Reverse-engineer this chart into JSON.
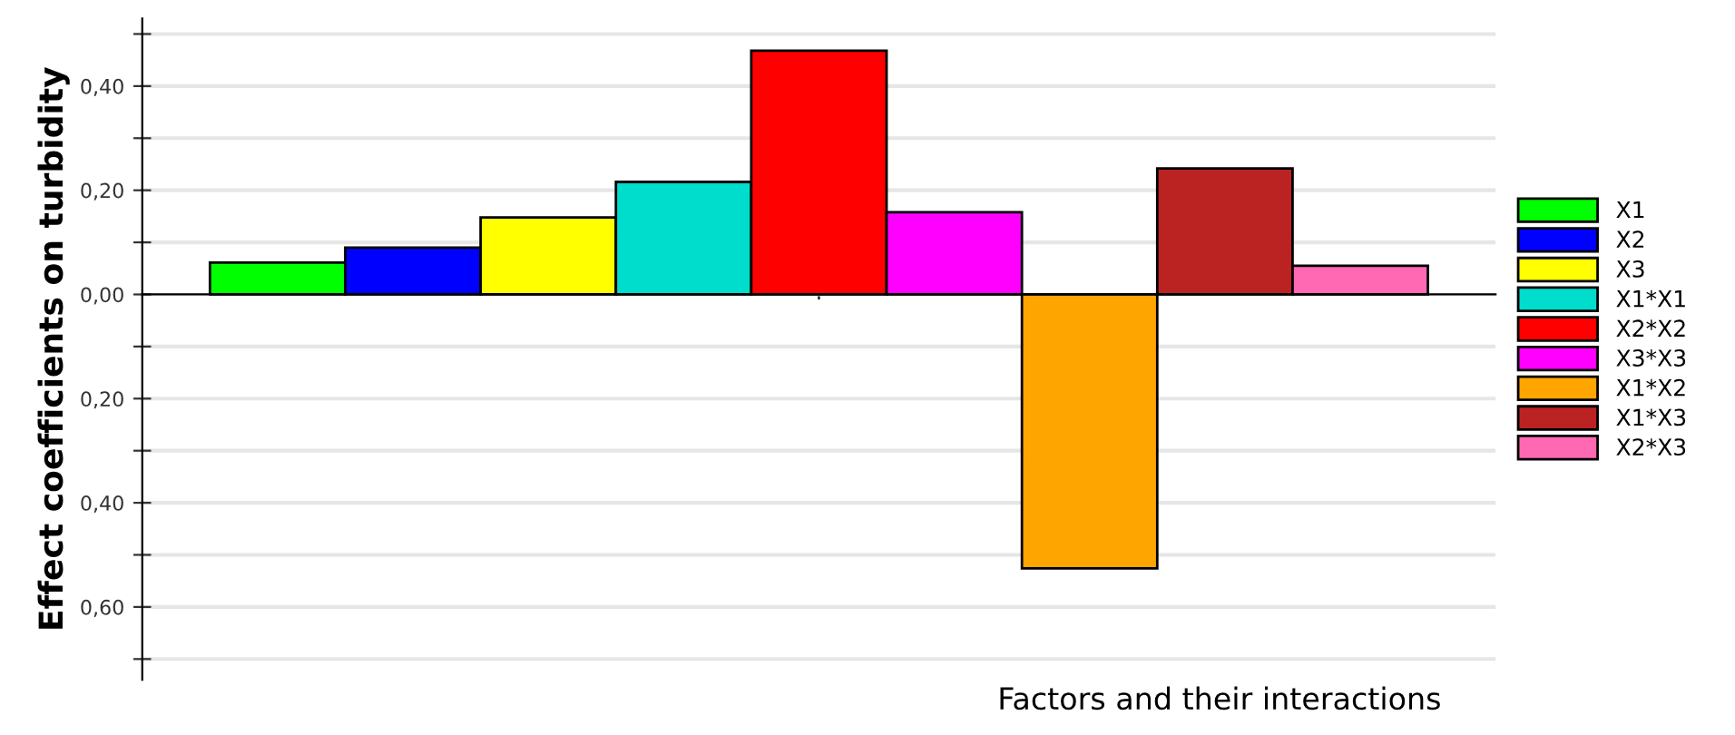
{
  "chart_data": {
    "type": "bar",
    "ylabel": "Effect coefficients on turbidity",
    "xlabel": "Factors and their interactions",
    "categories": [
      null
    ],
    "series": [
      {
        "name": "X1",
        "color": "#00ff00",
        "values": [
          0.061
        ]
      },
      {
        "name": "X2",
        "color": "#0000ff",
        "values": [
          0.09
        ]
      },
      {
        "name": "X3",
        "color": "#ffff00",
        "values": [
          0.148
        ]
      },
      {
        "name": "X1*X1",
        "color": "#00ddcc",
        "values": [
          0.216
        ]
      },
      {
        "name": "X2*X2",
        "color": "#ff0000",
        "values": [
          0.468
        ]
      },
      {
        "name": "X3*X3",
        "color": "#ff00ff",
        "values": [
          0.158
        ]
      },
      {
        "name": "X1*X2",
        "color": "#ffa500",
        "values": [
          -0.526
        ]
      },
      {
        "name": "X1*X3",
        "color": "#bb2222",
        "values": [
          0.242
        ]
      },
      {
        "name": "X2*X3",
        "color": "#ff69b4",
        "values": [
          0.055
        ]
      }
    ],
    "ylim": [
      -0.74,
      0.53
    ],
    "yticks": [
      {
        "value": 0.5,
        "label": null
      },
      {
        "value": 0.4,
        "label": "0,40"
      },
      {
        "value": 0.3,
        "label": null
      },
      {
        "value": 0.2,
        "label": "0,20"
      },
      {
        "value": 0.1,
        "label": null
      },
      {
        "value": 0,
        "label": "0,00"
      },
      {
        "value": -0.1,
        "label": null
      },
      {
        "value": -0.2,
        "label": "0,20"
      },
      {
        "value": -0.3,
        "label": null
      },
      {
        "value": -0.4,
        "label": "0,40"
      },
      {
        "value": -0.5,
        "label": null
      },
      {
        "value": -0.6,
        "label": "0,60"
      },
      {
        "value": -0.7,
        "label": null
      }
    ],
    "grid": "y",
    "legend": "right"
  }
}
